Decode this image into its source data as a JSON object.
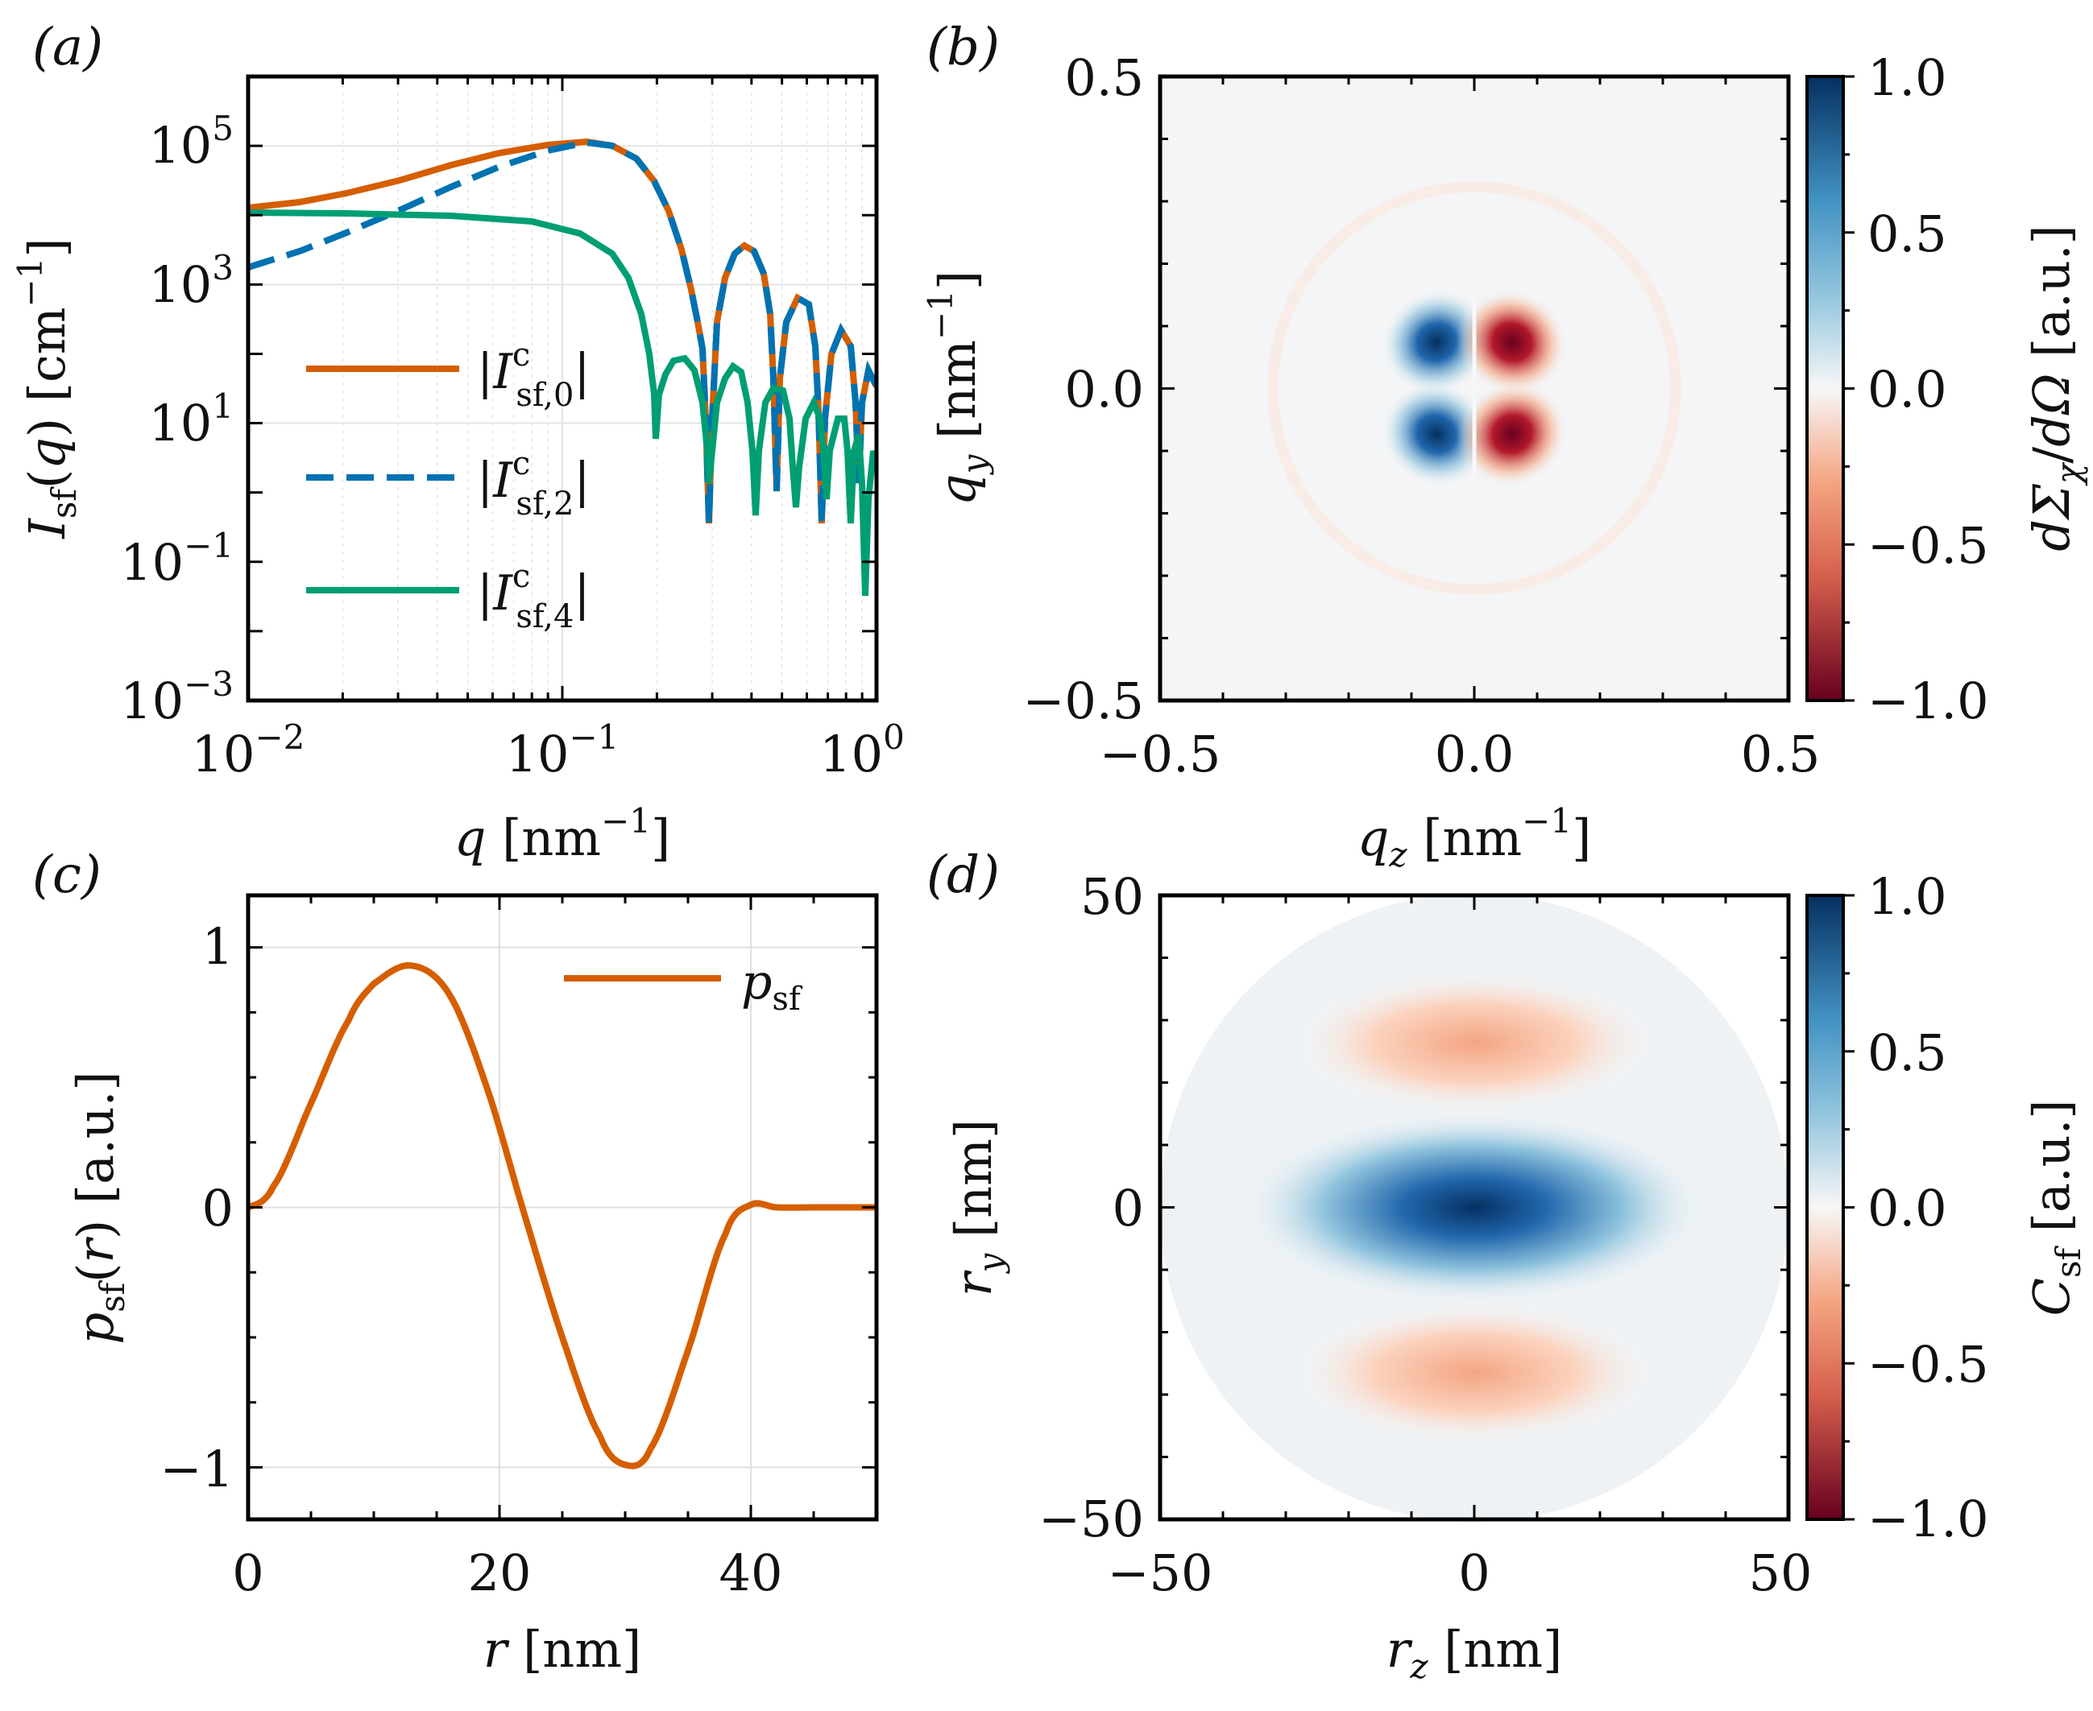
{
  "panel_letters": [
    "(a)",
    "(b)",
    "(c)",
    "(d)"
  ],
  "colors": {
    "orange": "#D55E00",
    "blue": "#0072B2",
    "green": "#009E73",
    "frame": "#000000",
    "grid": "#dddddd"
  },
  "chart_data": [
    {
      "id": "a",
      "type": "line",
      "xscale": "log",
      "yscale": "log",
      "xlim": [
        0.01,
        1.0
      ],
      "ylim": [
        0.001,
        1000000
      ],
      "x_ticks": [
        "10^{-2}",
        "10^{-1}",
        "10^{0}"
      ],
      "y_ticks": [
        "10^{-3}",
        "10^{-1}",
        "10^{1}",
        "10^{3}",
        "10^{5}"
      ],
      "xlabel": "q [nm^{-1}]",
      "ylabel": "I_sf(q) [cm^{-1}]",
      "grid": true,
      "legend_placement": "center-left",
      "series": [
        {
          "name": "|I^c_sf,0|",
          "color": "#D55E00",
          "style": "solid",
          "x": [
            0.01,
            0.02,
            0.05,
            0.1,
            0.13,
            0.2,
            0.25,
            0.3,
            0.36,
            0.45,
            0.55,
            0.65,
            0.75,
            0.9,
            1.0
          ],
          "y": [
            13000,
            17000,
            45000,
            95000,
            100000,
            15000,
            500,
            0.2,
            4000,
            300,
            700,
            8,
            100,
            20,
            30
          ]
        },
        {
          "name": "|I^c_sf,2|",
          "color": "#0072B2",
          "style": "dashed",
          "x": [
            0.01,
            0.02,
            0.05,
            0.1,
            0.13,
            0.2,
            0.25,
            0.3,
            0.36,
            0.45,
            0.55,
            0.65,
            0.75,
            0.9,
            1.0
          ],
          "y": [
            2000,
            8000,
            40000,
            95000,
            100000,
            15000,
            500,
            0.2,
            4000,
            300,
            700,
            8,
            100,
            20,
            30
          ]
        },
        {
          "name": "|I^c_sf,4|",
          "color": "#009E73",
          "style": "solid",
          "x": [
            0.01,
            0.05,
            0.1,
            0.15,
            0.18,
            0.2,
            0.25,
            0.3,
            0.45,
            0.55,
            0.65,
            0.85,
            1.0
          ],
          "y": [
            11000,
            10000,
            8000,
            1500,
            100,
            1,
            60,
            40,
            20,
            30,
            15,
            2,
            0.5
          ]
        }
      ]
    },
    {
      "id": "b",
      "type": "heatmap",
      "xlim": [
        -0.5,
        0.5
      ],
      "ylim": [
        -0.5,
        0.5
      ],
      "x_ticks": [
        "−0.5",
        "0.0",
        "0.5"
      ],
      "y_ticks": [
        "−0.5",
        "0.0",
        "0.5"
      ],
      "xlabel": "q_z [nm^{-1}]",
      "ylabel": "q_y [nm^{-1}]",
      "colorbar_label": "dΣ_χ/dΩ [a.u.]",
      "colorbar_range": [
        -1.0,
        1.0
      ],
      "colorbar_ticks": [
        "1.0",
        "0.5",
        "0.0",
        "−0.5",
        "−1.0"
      ],
      "pattern": "four-lobe: blue at upper-left and lower-left, red at upper-right and lower-right, lobe peaks near |q| ≈ 0.06 nm^-1"
    },
    {
      "id": "c",
      "type": "line",
      "xlim": [
        0,
        50
      ],
      "ylim": [
        -1.2,
        1.2
      ],
      "x_ticks": [
        "0",
        "20",
        "40"
      ],
      "y_ticks": [
        "1",
        "0",
        "−1"
      ],
      "xlabel": "r [nm]",
      "ylabel": "p_sf(r) [a.u.]",
      "grid": true,
      "legend_placement": "top-right",
      "series": [
        {
          "name": "p_sf",
          "color": "#D55E00",
          "x": [
            0,
            2,
            5,
            8,
            10,
            13,
            16,
            19,
            22,
            25,
            28,
            30,
            32,
            35,
            38,
            40,
            42,
            45,
            50
          ],
          "y": [
            0,
            0.08,
            0.4,
            0.72,
            0.86,
            0.93,
            0.82,
            0.46,
            -0.03,
            -0.5,
            -0.88,
            -0.99,
            -0.93,
            -0.55,
            -0.1,
            0.01,
            0.0,
            0.0,
            0.0
          ]
        }
      ]
    },
    {
      "id": "d",
      "type": "heatmap",
      "xlim": [
        -50,
        50
      ],
      "ylim": [
        -50,
        50
      ],
      "x_ticks": [
        "−50",
        "0",
        "50"
      ],
      "y_ticks": [
        "−50",
        "0",
        "50"
      ],
      "xlabel": "r_z [nm]",
      "ylabel": "r_y [nm]",
      "colorbar_label": "C_sf [a.u.]",
      "colorbar_range": [
        -1.0,
        1.0
      ],
      "colorbar_ticks": [
        "1.0",
        "0.5",
        "0.0",
        "−0.5",
        "−1.0"
      ],
      "pattern": "circular support of radius 50 nm; strong blue central band at r_y = 0, weak red bands near r_y = ±25 nm"
    }
  ]
}
